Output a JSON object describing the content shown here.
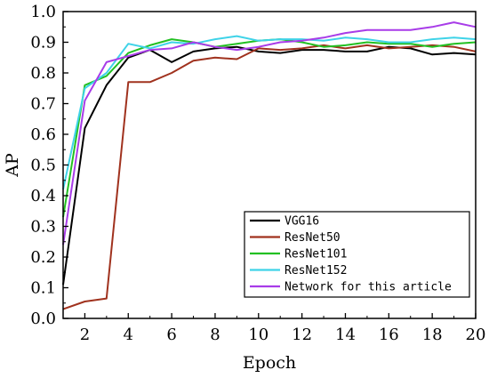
{
  "chart_data": {
    "type": "line",
    "xlabel": "Epoch",
    "ylabel": "AP",
    "xlim": [
      1,
      20
    ],
    "ylim": [
      0.0,
      1.0
    ],
    "x_ticks": [
      2,
      4,
      6,
      8,
      10,
      12,
      14,
      16,
      18,
      20
    ],
    "x_tick_labels": [
      "2",
      "4",
      "6",
      "8",
      "10",
      "12",
      "14",
      "16",
      "18",
      "20"
    ],
    "y_ticks": [
      0.0,
      0.1,
      0.2,
      0.3,
      0.4,
      0.5,
      0.6,
      0.7,
      0.8,
      0.9,
      1.0
    ],
    "y_tick_labels": [
      "0.0",
      "0.1",
      "0.2",
      "0.3",
      "0.4",
      "0.5",
      "0.6",
      "0.7",
      "0.8",
      "0.9",
      "1.0"
    ],
    "grid": false,
    "legend_position": "bottom-right",
    "x": [
      1,
      2,
      3,
      4,
      5,
      6,
      7,
      8,
      9,
      10,
      11,
      12,
      13,
      14,
      15,
      16,
      17,
      18,
      19,
      20
    ],
    "series": [
      {
        "name": "VGG16",
        "color": "#000000",
        "values": [
          0.11,
          0.62,
          0.76,
          0.85,
          0.875,
          0.835,
          0.87,
          0.88,
          0.885,
          0.87,
          0.865,
          0.875,
          0.875,
          0.87,
          0.87,
          0.885,
          0.88,
          0.86,
          0.865,
          0.86
        ]
      },
      {
        "name": "ResNet50",
        "color": "#a0321e",
        "values": [
          0.03,
          0.055,
          0.065,
          0.77,
          0.77,
          0.8,
          0.84,
          0.85,
          0.845,
          0.88,
          0.875,
          0.88,
          0.89,
          0.88,
          0.89,
          0.88,
          0.885,
          0.89,
          0.885,
          0.87
        ]
      },
      {
        "name": "ResNet101",
        "color": "#22c022",
        "values": [
          0.33,
          0.76,
          0.79,
          0.865,
          0.89,
          0.91,
          0.9,
          0.885,
          0.895,
          0.905,
          0.91,
          0.9,
          0.885,
          0.89,
          0.9,
          0.895,
          0.895,
          0.885,
          0.895,
          0.9
        ]
      },
      {
        "name": "ResNet152",
        "color": "#3fd3e8",
        "values": [
          0.42,
          0.75,
          0.8,
          0.895,
          0.88,
          0.9,
          0.895,
          0.91,
          0.92,
          0.905,
          0.91,
          0.91,
          0.905,
          0.915,
          0.91,
          0.9,
          0.9,
          0.91,
          0.915,
          0.91
        ]
      },
      {
        "name": "Network for this article",
        "color": "#a83ce8",
        "values": [
          0.24,
          0.71,
          0.835,
          0.855,
          0.875,
          0.88,
          0.9,
          0.885,
          0.875,
          0.885,
          0.9,
          0.905,
          0.915,
          0.93,
          0.94,
          0.94,
          0.94,
          0.95,
          0.965,
          0.95
        ]
      }
    ]
  }
}
